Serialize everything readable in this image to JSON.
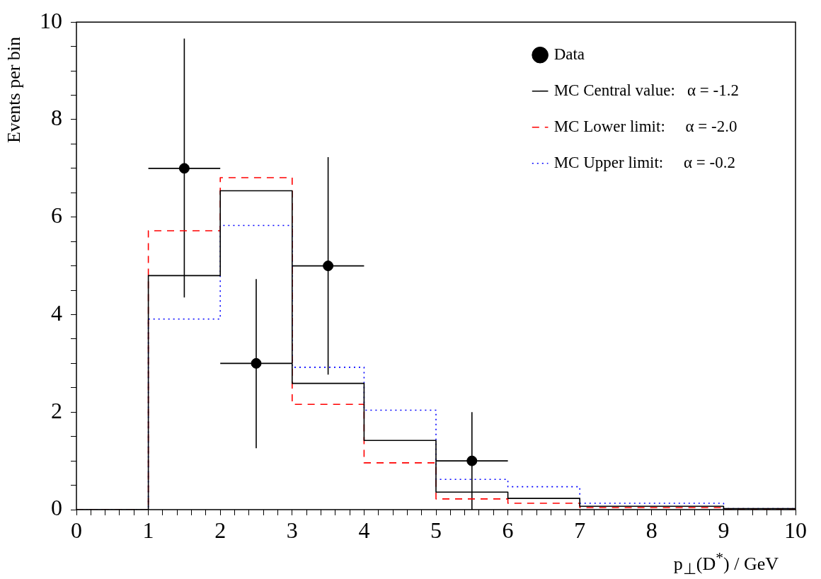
{
  "chart_data": {
    "type": "histogram",
    "xlabel": "p$_{⊥}$(D$^{*}$) / GeV",
    "ylabel": "Events per bin",
    "legend": "top right",
    "bins": [
      0,
      1,
      2,
      3,
      4,
      5,
      6,
      7,
      8,
      9,
      10
    ],
    "xlim": [
      0,
      10
    ],
    "ylim": [
      0,
      10
    ],
    "xticks": [
      0,
      {
        "value": 0.2,
        "label": null
      },
      {
        "value": 0.4,
        "label": null
      },
      {
        "value": 0.6,
        "label": null
      },
      {
        "value": 0.8,
        "label": null
      },
      1,
      {
        "value": 1.2,
        "label": null
      },
      {
        "value": 1.4,
        "label": null
      },
      {
        "value": 1.6,
        "label": null
      },
      {
        "value": 1.8,
        "label": null
      },
      2,
      {
        "value": 2.2,
        "label": null
      },
      {
        "value": 2.4,
        "label": null
      },
      {
        "value": 2.6,
        "label": null
      },
      {
        "value": 2.8,
        "label": null
      },
      3,
      {
        "value": 3.2,
        "label": null
      },
      {
        "value": 3.4,
        "label": null
      },
      {
        "value": 3.6,
        "label": null
      },
      {
        "value": 3.8,
        "label": null
      },
      4,
      {
        "value": 4.2,
        "label": null
      },
      {
        "value": 4.4,
        "label": null
      },
      {
        "value": 4.6,
        "label": null
      },
      {
        "value": 4.8,
        "label": null
      },
      5,
      {
        "value": 5.2,
        "label": null
      },
      {
        "value": 5.4,
        "label": null
      },
      {
        "value": 5.6,
        "label": null
      },
      {
        "value": 5.8,
        "label": null
      },
      6,
      {
        "value": 6.2,
        "label": null
      },
      {
        "value": 6.4,
        "label": null
      },
      {
        "value": 6.6,
        "label": null
      },
      {
        "value": 6.8,
        "label": null
      },
      7,
      {
        "value": 7.2,
        "label": null
      },
      {
        "value": 7.4,
        "label": null
      },
      {
        "value": 7.6,
        "label": null
      },
      {
        "value": 7.8,
        "label": null
      },
      8,
      {
        "value": 8.2,
        "label": null
      },
      {
        "value": 8.4,
        "label": null
      },
      {
        "value": 8.6,
        "label": null
      },
      {
        "value": 8.8,
        "label": null
      },
      9,
      {
        "value": 9.2,
        "label": null
      },
      {
        "value": 9.4,
        "label": null
      },
      {
        "value": 9.6,
        "label": null
      },
      {
        "value": 9.8,
        "label": null
      },
      10
    ],
    "yticks": [
      0,
      {
        "value": 0.5,
        "label": null
      },
      {
        "value": 1,
        "label": null
      },
      {
        "value": 1.5,
        "label": null
      },
      2,
      {
        "value": 2.5,
        "label": null
      },
      {
        "value": 3,
        "label": null
      },
      {
        "value": 3.5,
        "label": null
      },
      4,
      {
        "value": 4.5,
        "label": null
      },
      {
        "value": 5,
        "label": null
      },
      {
        "value": 5.5,
        "label": null
      },
      6,
      {
        "value": 6.5,
        "label": null
      },
      {
        "value": 7,
        "label": null
      },
      {
        "value": 7.5,
        "label": null
      },
      8,
      {
        "value": 8.5,
        "label": null
      },
      {
        "value": 9,
        "label": null
      },
      {
        "value": 9.5,
        "label": null
      },
      10
    ],
    "series": [
      {
        "type": "scatter",
        "name": "Data",
        "color": "#000000",
        "marker": "circle",
        "x": [
          1.5,
          2.5,
          3.5,
          5.5
        ],
        "values": [
          7,
          3,
          5,
          1
        ],
        "errors": [
          [
            4.35,
            9.66
          ],
          [
            1.26,
            4.73
          ],
          [
            2.77,
            7.23
          ],
          [
            0,
            2
          ]
        ],
        "xerrors": [
          0.5,
          0.5,
          0.5,
          0.5
        ]
      },
      {
        "name": "MC Central value:   α = -1.2",
        "color": "#000000",
        "line_style": "solid",
        "values": [
          0,
          4.8,
          6.54,
          2.59,
          1.42,
          0.36,
          0.23,
          0.07,
          0.07,
          0.02
        ]
      },
      {
        "name": "MC Lower limit:     α = -2.0",
        "color": "#ff0000",
        "line_style": "dashed",
        "values": [
          0,
          5.72,
          6.81,
          2.16,
          0.96,
          0.22,
          0.13,
          0.04,
          0.04,
          0.01
        ]
      },
      {
        "name": "MC Upper limit:     α = -0.2",
        "color": "#0000ff",
        "line_style": "dotted",
        "values": [
          0,
          3.91,
          5.83,
          2.92,
          2.04,
          0.62,
          0.47,
          0.13,
          0.13,
          0.02
        ]
      }
    ]
  }
}
